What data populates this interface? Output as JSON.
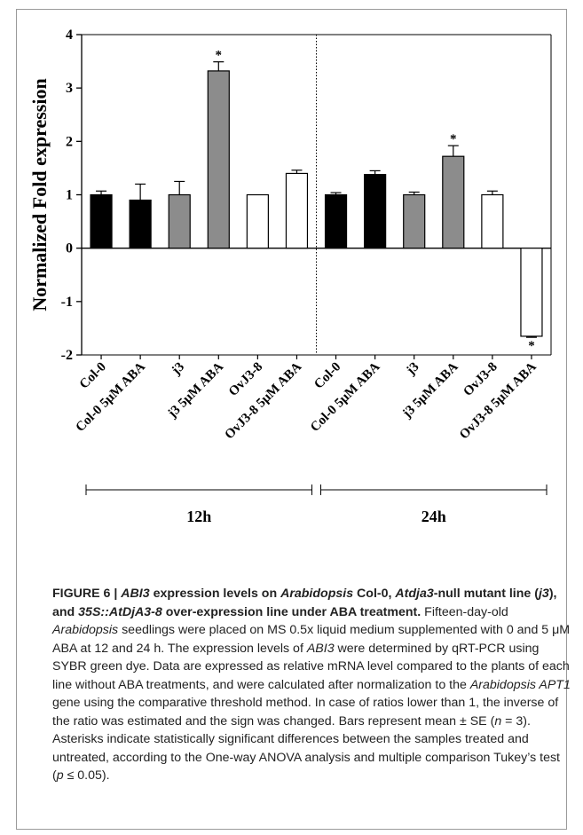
{
  "chart_data": {
    "type": "bar",
    "ylabel": "Normalized Fold expression",
    "ylim": [
      -2,
      4
    ],
    "yticks": [
      4,
      3,
      2,
      1,
      0,
      -1,
      -2
    ],
    "categories": [
      "Col-0",
      "Col-0 5μM ABA",
      "j3",
      "j3 5μM ABA",
      "OvJ3-8",
      "OvJ3-8 5μM ABA",
      "Col-0",
      "Col-0 5μM ABA",
      "j3",
      "j3 5μM ABA",
      "OvJ3-8",
      "OvJ3-8 5μM ABA"
    ],
    "values": [
      1.0,
      0.9,
      1.0,
      3.32,
      1.0,
      1.4,
      1.0,
      1.38,
      1.0,
      1.72,
      1.0,
      -1.65
    ],
    "errors": [
      0.07,
      0.3,
      0.25,
      0.17,
      0.0,
      0.06,
      0.04,
      0.07,
      0.05,
      0.2,
      0.07,
      0.02
    ],
    "significant": [
      false,
      false,
      false,
      true,
      false,
      false,
      false,
      false,
      false,
      true,
      false,
      true
    ],
    "significance_marker": "*",
    "fills": [
      "#000000",
      "#000000",
      "#8c8c8c",
      "#8c8c8c",
      "#ffffff",
      "#ffffff",
      "#000000",
      "#000000",
      "#8c8c8c",
      "#8c8c8c",
      "#ffffff",
      "#ffffff"
    ],
    "groups": [
      {
        "label": "12h",
        "bars": [
          0,
          5
        ]
      },
      {
        "label": "24h",
        "bars": [
          6,
          11
        ]
      }
    ],
    "separator": "dotted line between groups"
  },
  "caption": {
    "fig_label": "FIGURE 6 |",
    "t1": "ABI3",
    "t2": " expression levels on ",
    "t3": "Arabidopsis",
    "t4": " Col-0, ",
    "t5": "Atdja3",
    "t6": "-null mutant line (",
    "t7": "j3",
    "t8": "), and ",
    "t9": "35S::AtDjA3-8",
    "t10": " over-expression line under ABA treatment.",
    "b1": " Fifteen-day-old ",
    "b2": "Arabidopsis",
    "b3": " seedlings were placed on MS 0.5x liquid medium supplemented with 0 and 5 μM ABA at 12 and 24 h. The expression levels of ",
    "b4": "ABI3",
    "b5": " were determined by qRT-PCR using SYBR green dye. Data are expressed as relative mRNA level compared to the plants of each line without ABA treatments, and were calculated after normalization to the ",
    "b6": "Arabidopsis APT1",
    "b7": " gene using the comparative threshold method. In case of ratios lower than 1, the inverse of the ratio was estimated and the sign was changed. Bars represent mean ± SE (",
    "b8": "n",
    "b9": " = 3). Asterisks indicate statistically significant differences between the samples treated and untreated, according to the One-way ANOVA analysis and multiple comparison Tukey’s test (",
    "b10": "p",
    "b11": " ≤ 0.05)."
  }
}
